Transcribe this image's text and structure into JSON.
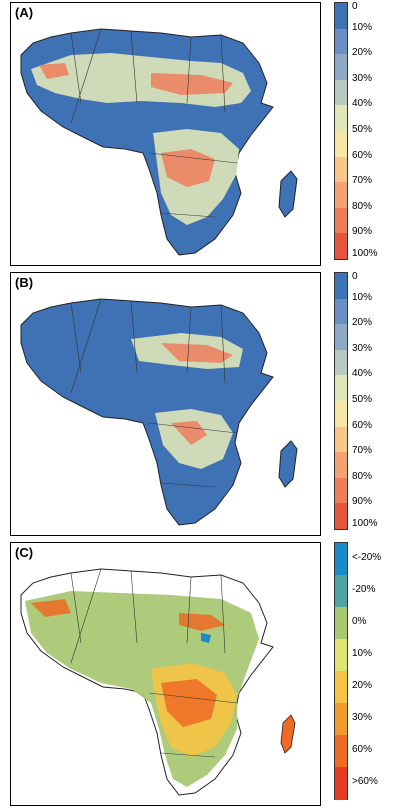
{
  "panels": [
    {
      "label": "(A)",
      "legend": {
        "ticks": [
          "0",
          "10%",
          "20%",
          "30%",
          "40%",
          "50%",
          "60%",
          "70%",
          "80%",
          "90%",
          "100%"
        ],
        "colors": [
          "#3f72b5",
          "#6b8fc2",
          "#8ea9c6",
          "#b8c9c0",
          "#dfe7b8",
          "#f6e6a8",
          "#f6c68a",
          "#f3a273",
          "#ee7d5c",
          "#e6533f"
        ]
      }
    },
    {
      "label": "(B)",
      "legend": {
        "ticks": [
          "0",
          "10%",
          "20%",
          "30%",
          "40%",
          "50%",
          "60%",
          "70%",
          "80%",
          "90%",
          "100%"
        ],
        "colors": [
          "#3f72b5",
          "#6b8fc2",
          "#8ea9c6",
          "#b8c9c0",
          "#dfe7b8",
          "#f6e6a8",
          "#f6c68a",
          "#f3a273",
          "#ee7d5c",
          "#e6533f"
        ]
      }
    },
    {
      "label": "(C)",
      "legend": {
        "ticks": [
          "<-20%",
          "-20%",
          "0%",
          "10%",
          "20%",
          "30%",
          "60%",
          ">60%"
        ],
        "colors": [
          "#1a8ac9",
          "#4fa3a0",
          "#a9c873",
          "#dfe472",
          "#f6c444",
          "#f39a2e",
          "#ee6a25",
          "#e63b20"
        ]
      }
    }
  ]
}
